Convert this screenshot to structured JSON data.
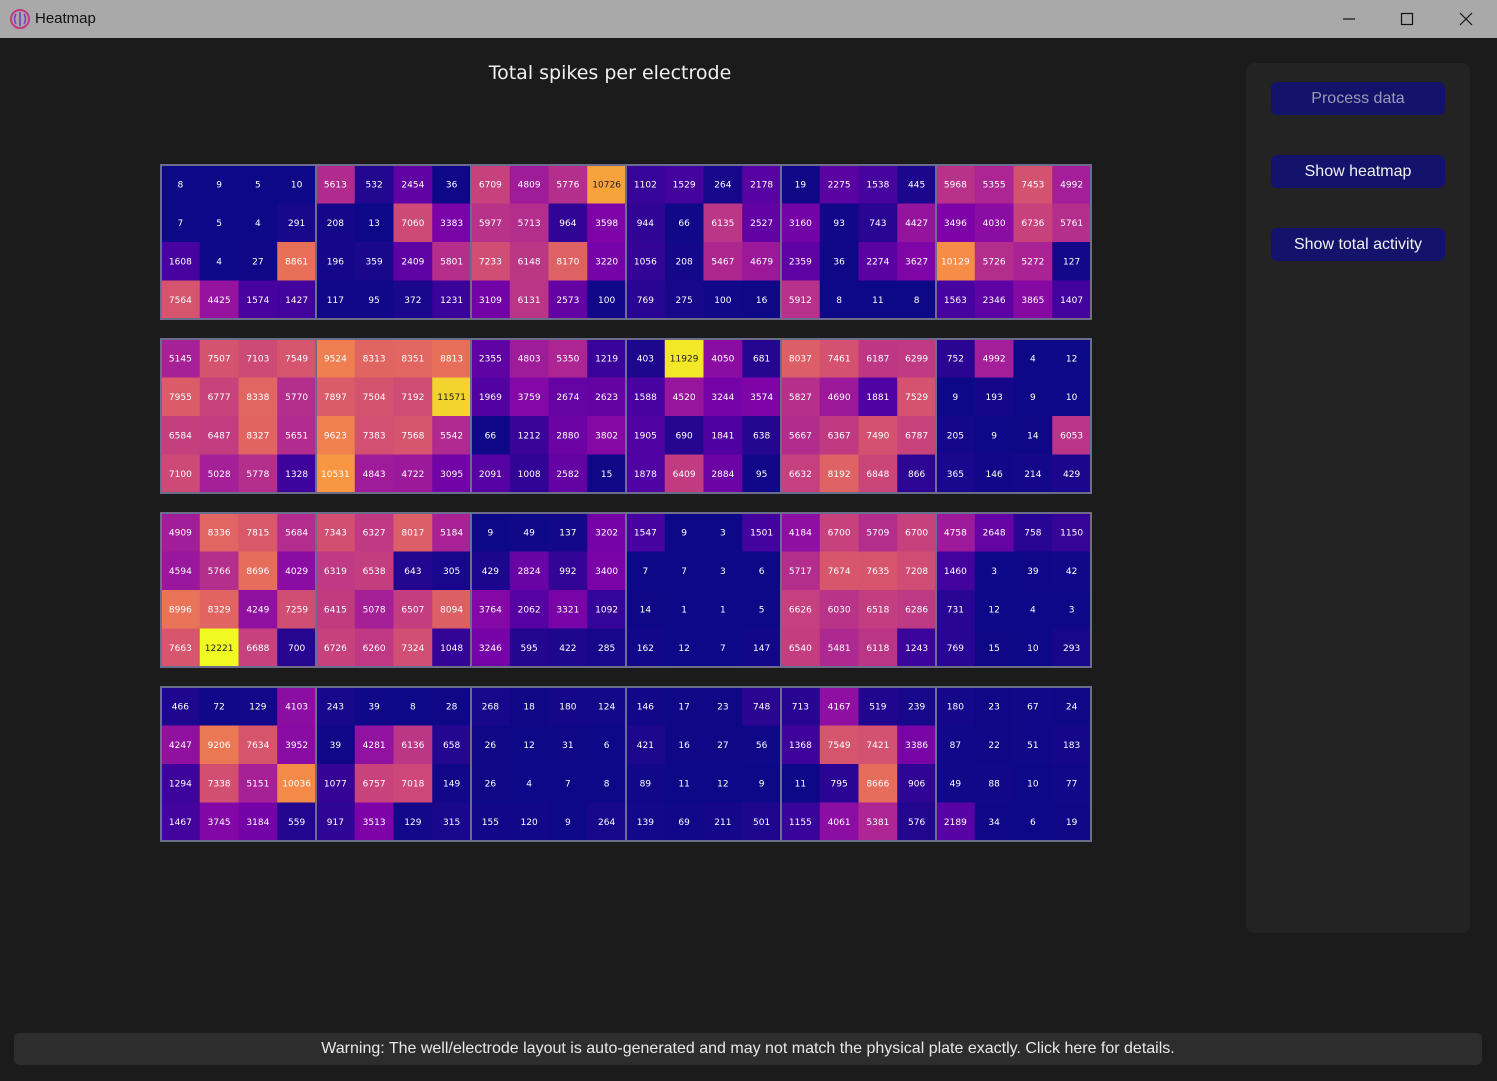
{
  "window": {
    "title": "Heatmap",
    "controls": [
      "minimize-icon",
      "maximize-icon",
      "close-icon"
    ],
    "app_icon": "brain-icon"
  },
  "sidebar": {
    "process_label": "Process data",
    "process_enabled": false,
    "heatmap_label": "Show heatmap",
    "activity_label": "Show total activity"
  },
  "warning": {
    "text": "Warning: The well/electrode layout is auto-generated and may not match the physical plate exactly. Click here for details."
  },
  "colors": {
    "background": "#1b1b1b",
    "button": "#13136b",
    "well_border": "#6c6c8c",
    "colormap": "plasma"
  },
  "chart_data": {
    "type": "heatmap",
    "title": "Total spikes per electrode",
    "colormap": "plasma",
    "value_range": [
      0,
      12221
    ],
    "well_rows": 4,
    "well_cols": 6,
    "electrodes_per_well": [
      4,
      4
    ],
    "rows": [
      [
        8,
        9,
        5,
        10,
        5613,
        532,
        2454,
        36,
        6709,
        4809,
        5776,
        10726,
        1102,
        1529,
        264,
        2178,
        19,
        2275,
        1538,
        445,
        5968,
        5355,
        7453,
        4992
      ],
      [
        7,
        5,
        4,
        291,
        208,
        13,
        7060,
        3383,
        5977,
        5713,
        964,
        3598,
        944,
        66,
        6135,
        2527,
        3160,
        93,
        743,
        4427,
        3496,
        4030,
        6736,
        5761
      ],
      [
        1608,
        4,
        27,
        8861,
        196,
        359,
        2409,
        5801,
        7233,
        6148,
        8170,
        3220,
        1056,
        208,
        5467,
        4679,
        2359,
        36,
        2274,
        3627,
        10129,
        5726,
        5272,
        127
      ],
      [
        7564,
        4425,
        1574,
        1427,
        117,
        95,
        372,
        1231,
        3109,
        6131,
        2573,
        100,
        769,
        275,
        100,
        16,
        5912,
        8,
        11,
        8,
        1563,
        2346,
        3865,
        1407
      ],
      [
        5145,
        7507,
        7103,
        7549,
        9524,
        8313,
        8351,
        8813,
        2355,
        4803,
        5350,
        1219,
        403,
        11929,
        4050,
        681,
        8037,
        7461,
        6187,
        6299,
        752,
        4992,
        4,
        12
      ],
      [
        7955,
        6777,
        8338,
        5770,
        7897,
        7504,
        7192,
        11571,
        1969,
        3759,
        2674,
        2623,
        1588,
        4520,
        3244,
        3574,
        5827,
        4690,
        1881,
        7529,
        9,
        193,
        9,
        10
      ],
      [
        6584,
        6487,
        8327,
        5651,
        9623,
        7383,
        7568,
        5542,
        66,
        1212,
        2880,
        3802,
        1905,
        690,
        1841,
        638,
        5667,
        6367,
        7490,
        6787,
        205,
        9,
        14,
        6053
      ],
      [
        7100,
        5028,
        5778,
        1328,
        10531,
        4843,
        4722,
        3095,
        2091,
        1008,
        2582,
        15,
        1878,
        6409,
        2884,
        95,
        6632,
        8192,
        6848,
        866,
        365,
        146,
        214,
        429
      ],
      [
        4909,
        8336,
        7815,
        5684,
        7343,
        6327,
        8017,
        5184,
        9,
        49,
        137,
        3202,
        1547,
        9,
        3,
        1501,
        4184,
        6700,
        5709,
        6700,
        4758,
        2648,
        758,
        1150
      ],
      [
        4594,
        5766,
        8696,
        4029,
        6319,
        6538,
        643,
        305,
        429,
        2824,
        992,
        3400,
        7,
        7,
        3,
        6,
        5717,
        7674,
        7635,
        7208,
        1460,
        3,
        39,
        42
      ],
      [
        8996,
        8329,
        4249,
        7259,
        6415,
        5078,
        6507,
        8094,
        3764,
        2062,
        3321,
        1092,
        14,
        1,
        1,
        5,
        6626,
        6030,
        6518,
        6286,
        731,
        12,
        4,
        3
      ],
      [
        7663,
        12221,
        6688,
        700,
        6726,
        6260,
        7324,
        1048,
        3246,
        595,
        422,
        285,
        162,
        12,
        7,
        147,
        6540,
        5481,
        6118,
        1243,
        769,
        15,
        10,
        293
      ],
      [
        466,
        72,
        129,
        4103,
        243,
        39,
        8,
        28,
        268,
        18,
        180,
        124,
        146,
        17,
        23,
        748,
        713,
        4167,
        519,
        239,
        180,
        23,
        67,
        24
      ],
      [
        4247,
        9206,
        7634,
        3952,
        39,
        4281,
        6136,
        658,
        26,
        12,
        31,
        6,
        421,
        16,
        27,
        56,
        1368,
        7549,
        7421,
        3386,
        87,
        22,
        51,
        183
      ],
      [
        1294,
        7338,
        5151,
        10036,
        1077,
        6757,
        7018,
        149,
        26,
        4,
        7,
        8,
        89,
        11,
        12,
        9,
        11,
        795,
        8666,
        906,
        49,
        88,
        10,
        77
      ],
      [
        1467,
        3745,
        3184,
        559,
        917,
        3513,
        129,
        315,
        155,
        120,
        9,
        264,
        139,
        69,
        211,
        501,
        1155,
        4061,
        5381,
        576,
        2189,
        34,
        6,
        19
      ]
    ]
  }
}
